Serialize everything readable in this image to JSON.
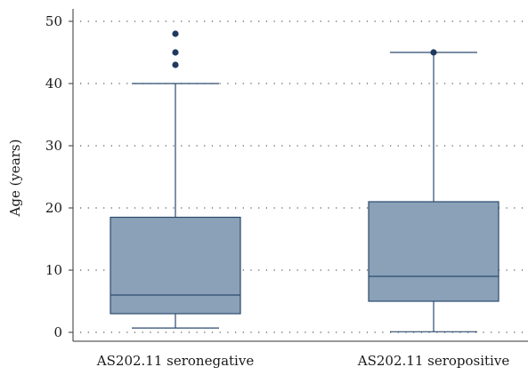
{
  "chart_data": {
    "type": "boxplot",
    "ylabel": "Age (years)",
    "ylim": [
      0,
      50
    ],
    "yticks": [
      0,
      10,
      20,
      30,
      40,
      50
    ],
    "grid": "dotted horizontal",
    "categories": [
      "AS202.11 seronegative",
      "AS202.11 seropositive"
    ],
    "boxes": [
      {
        "category": "AS202.11 seronegative",
        "whisker_low": 0.7,
        "q1": 3,
        "median": 6,
        "q3": 18.5,
        "whisker_high": 40,
        "outliers": [
          43,
          45,
          48
        ]
      },
      {
        "category": "AS202.11 seropositive",
        "whisker_low": 0.1,
        "q1": 5,
        "median": 9,
        "q3": 21,
        "whisker_high": 45,
        "outliers": [
          45
        ]
      }
    ],
    "colors": {
      "box_fill": "#8aa1b7",
      "stroke": "#2c4a6e",
      "outlier": "#1f3a5f",
      "grid": "#555555"
    }
  }
}
